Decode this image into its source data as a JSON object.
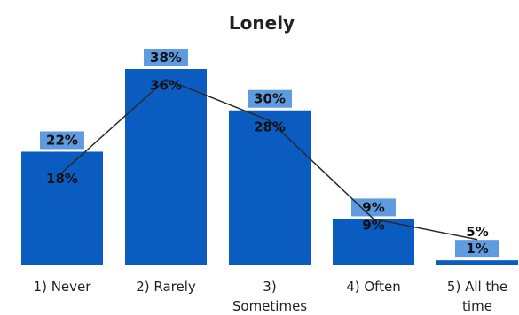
{
  "chart_data": {
    "type": "bar",
    "title": "Lonely",
    "categories": [
      [
        "1) Never"
      ],
      [
        "2) Rarely"
      ],
      [
        "3)",
        "Sometimes"
      ],
      [
        "4) Often"
      ],
      [
        "5) All the",
        "time"
      ]
    ],
    "series": [
      {
        "type": "bar",
        "values": [
          22,
          38,
          30,
          9,
          1
        ],
        "labels": [
          "22%",
          "38%",
          "30%",
          "9%",
          "1%"
        ]
      },
      {
        "type": "line",
        "values": [
          18,
          36,
          28,
          9,
          5
        ],
        "labels": [
          "18%",
          "36%",
          "28%",
          "9%",
          "5%"
        ]
      }
    ],
    "ylim": [
      0,
      40
    ],
    "colors": {
      "bar": "#0b5cc1",
      "label_bg": "#5f9be0",
      "line": "#2a2a2a"
    },
    "legend": "none",
    "grid": false
  }
}
